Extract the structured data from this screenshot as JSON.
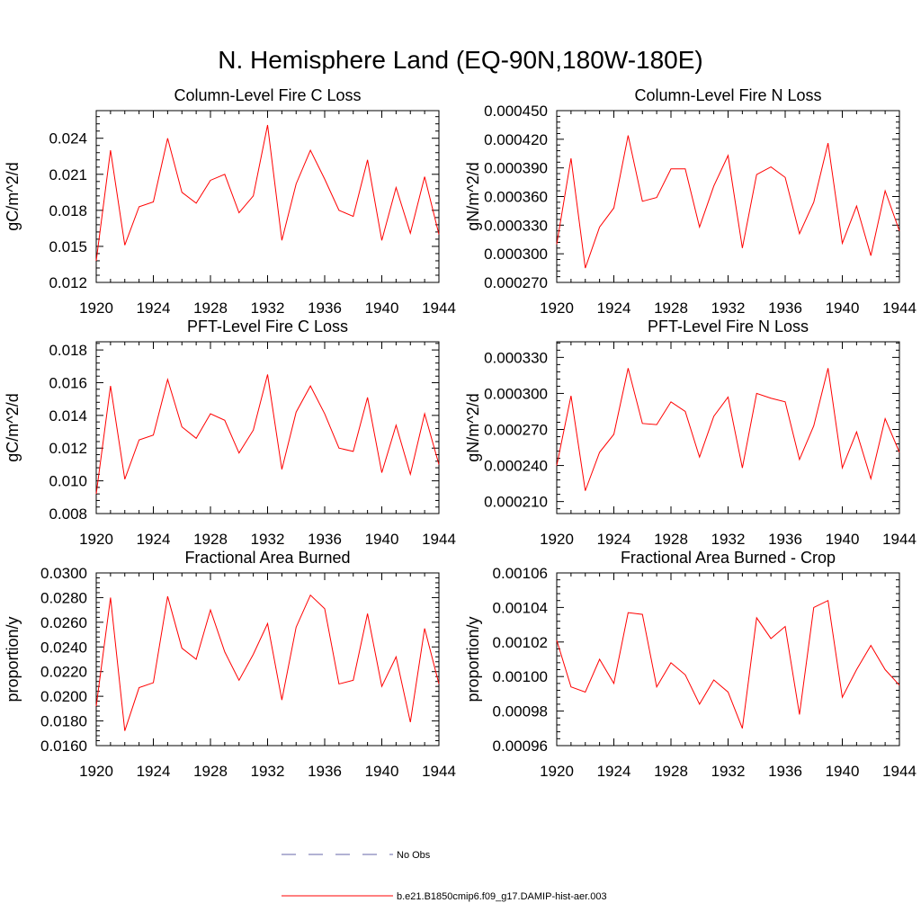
{
  "figure_title": "N. Hemisphere Land (EQ-90N,180W-180E)",
  "line_color": "#ff0000",
  "obs_color": "#6666aa",
  "legend": [
    {
      "label": "No Obs",
      "style": "dashed"
    },
    {
      "label": "b.e21.B1850cmip6.f09_g17.DAMIP-hist-aer.003",
      "style": "solid"
    }
  ],
  "chart_data": [
    {
      "type": "line",
      "title": "Column-Level Fire C Loss",
      "ylabel": "gC/m^2/d",
      "xlim": [
        1920,
        1944
      ],
      "x_ticks": [
        "1920",
        "1924",
        "1928",
        "1932",
        "1936",
        "1940",
        "1944"
      ],
      "ylim": [
        0.012,
        0.0263
      ],
      "y_ticks": [
        0.012,
        0.015,
        0.018,
        0.021,
        0.024
      ],
      "y_tick_labels": [
        "0.012",
        "0.015",
        "0.018",
        "0.021",
        "0.024"
      ],
      "x": [
        1920,
        1921,
        1922,
        1923,
        1924,
        1925,
        1926,
        1927,
        1928,
        1929,
        1930,
        1931,
        1932,
        1933,
        1934,
        1935,
        1936,
        1937,
        1938,
        1939,
        1940,
        1941,
        1942,
        1943,
        1944
      ],
      "series": [
        {
          "name": "b.e21.B1850cmip6.f09_g17.DAMIP-hist-aer.003",
          "values": [
            0.0138,
            0.023,
            0.0151,
            0.0183,
            0.0187,
            0.024,
            0.0195,
            0.0186,
            0.0205,
            0.021,
            0.0178,
            0.0192,
            0.0251,
            0.0155,
            0.0202,
            0.023,
            0.0206,
            0.018,
            0.0175,
            0.0222,
            0.0155,
            0.0199,
            0.0161,
            0.0208,
            0.016
          ]
        }
      ]
    },
    {
      "type": "line",
      "title": "Column-Level Fire N Loss",
      "ylabel": "gN/m^2/d",
      "xlim": [
        1920,
        1944
      ],
      "x_ticks": [
        "1920",
        "1924",
        "1928",
        "1932",
        "1936",
        "1940",
        "1944"
      ],
      "ylim": [
        0.00027,
        0.00045
      ],
      "y_ticks": [
        0.00027,
        0.0003,
        0.00033,
        0.00036,
        0.00039,
        0.00042,
        0.00045
      ],
      "y_tick_labels": [
        "0.000270",
        "0.000300",
        "0.000330",
        "0.000360",
        "0.000390",
        "0.000420",
        "0.000450"
      ],
      "x": [
        1920,
        1921,
        1922,
        1923,
        1924,
        1925,
        1926,
        1927,
        1928,
        1929,
        1930,
        1931,
        1932,
        1933,
        1934,
        1935,
        1936,
        1937,
        1938,
        1939,
        1940,
        1941,
        1942,
        1943,
        1944
      ],
      "series": [
        {
          "name": "b.e21.B1850cmip6.f09_g17.DAMIP-hist-aer.003",
          "values": [
            0.00031,
            0.0004,
            0.000285,
            0.000328,
            0.000348,
            0.000424,
            0.000355,
            0.000359,
            0.000389,
            0.000389,
            0.000328,
            0.000371,
            0.000403,
            0.000306,
            0.000383,
            0.000391,
            0.00038,
            0.000321,
            0.000354,
            0.000416,
            0.000311,
            0.00035,
            0.000298,
            0.000366,
            0.000324
          ]
        }
      ]
    },
    {
      "type": "line",
      "title": "PFT-Level Fire C Loss",
      "ylabel": "gC/m^2/d",
      "xlim": [
        1920,
        1944
      ],
      "x_ticks": [
        "1920",
        "1924",
        "1928",
        "1932",
        "1936",
        "1940",
        "1944"
      ],
      "ylim": [
        0.008,
        0.0185
      ],
      "y_ticks": [
        0.008,
        0.01,
        0.012,
        0.014,
        0.016,
        0.018
      ],
      "y_tick_labels": [
        "0.008",
        "0.010",
        "0.012",
        "0.014",
        "0.016",
        "0.018"
      ],
      "x": [
        1920,
        1921,
        1922,
        1923,
        1924,
        1925,
        1926,
        1927,
        1928,
        1929,
        1930,
        1931,
        1932,
        1933,
        1934,
        1935,
        1936,
        1937,
        1938,
        1939,
        1940,
        1941,
        1942,
        1943,
        1944
      ],
      "series": [
        {
          "name": "b.e21.B1850cmip6.f09_g17.DAMIP-hist-aer.003",
          "values": [
            0.0092,
            0.0158,
            0.0101,
            0.0125,
            0.0128,
            0.0162,
            0.0133,
            0.0126,
            0.0141,
            0.0137,
            0.0117,
            0.0131,
            0.0165,
            0.0107,
            0.0142,
            0.0158,
            0.0141,
            0.012,
            0.0118,
            0.0151,
            0.0105,
            0.0134,
            0.0104,
            0.0141,
            0.011
          ]
        }
      ]
    },
    {
      "type": "line",
      "title": "PFT-Level Fire N Loss",
      "ylabel": "gN/m^2/d",
      "xlim": [
        1920,
        1944
      ],
      "x_ticks": [
        "1920",
        "1924",
        "1928",
        "1932",
        "1936",
        "1940",
        "1944"
      ],
      "ylim": [
        0.0002,
        0.000343
      ],
      "y_ticks": [
        0.00021,
        0.00024,
        0.00027,
        0.0003,
        0.00033
      ],
      "y_tick_labels": [
        "0.000210",
        "0.000240",
        "0.000270",
        "0.000300",
        "0.000330"
      ],
      "x": [
        1920,
        1921,
        1922,
        1923,
        1924,
        1925,
        1926,
        1927,
        1928,
        1929,
        1930,
        1931,
        1932,
        1933,
        1934,
        1935,
        1936,
        1937,
        1938,
        1939,
        1940,
        1941,
        1942,
        1943,
        1944
      ],
      "series": [
        {
          "name": "b.e21.B1850cmip6.f09_g17.DAMIP-hist-aer.003",
          "values": [
            0.00024,
            0.000298,
            0.000219,
            0.000251,
            0.000266,
            0.000321,
            0.000275,
            0.000274,
            0.000293,
            0.000285,
            0.000247,
            0.000281,
            0.000297,
            0.000238,
            0.0003,
            0.000296,
            0.000293,
            0.000245,
            0.000273,
            0.000321,
            0.000238,
            0.000268,
            0.000229,
            0.000279,
            0.000251
          ]
        }
      ]
    },
    {
      "type": "line",
      "title": "Fractional Area Burned",
      "ylabel": "proportion/y",
      "xlim": [
        1920,
        1944
      ],
      "x_ticks": [
        "1920",
        "1924",
        "1928",
        "1932",
        "1936",
        "1940",
        "1944"
      ],
      "ylim": [
        0.016,
        0.03
      ],
      "y_ticks": [
        0.016,
        0.018,
        0.02,
        0.022,
        0.024,
        0.026,
        0.028,
        0.03
      ],
      "y_tick_labels": [
        "0.0160",
        "0.0180",
        "0.0200",
        "0.0220",
        "0.0240",
        "0.0260",
        "0.0280",
        "0.0300"
      ],
      "x": [
        1920,
        1921,
        1922,
        1923,
        1924,
        1925,
        1926,
        1927,
        1928,
        1929,
        1930,
        1931,
        1932,
        1933,
        1934,
        1935,
        1936,
        1937,
        1938,
        1939,
        1940,
        1941,
        1942,
        1943,
        1944
      ],
      "series": [
        {
          "name": "b.e21.B1850cmip6.f09_g17.DAMIP-hist-aer.003",
          "values": [
            0.0192,
            0.028,
            0.0172,
            0.0207,
            0.0211,
            0.0281,
            0.0239,
            0.023,
            0.027,
            0.0236,
            0.0213,
            0.0234,
            0.0259,
            0.0197,
            0.0256,
            0.0282,
            0.0271,
            0.021,
            0.0213,
            0.0267,
            0.0208,
            0.0232,
            0.0179,
            0.0255,
            0.021
          ]
        }
      ]
    },
    {
      "type": "line",
      "title": "Fractional Area Burned - Crop",
      "ylabel": "proportion/y",
      "xlim": [
        1920,
        1944
      ],
      "x_ticks": [
        "1920",
        "1924",
        "1928",
        "1932",
        "1936",
        "1940",
        "1944"
      ],
      "ylim": [
        0.00096,
        0.00106
      ],
      "y_ticks": [
        0.00096,
        0.00098,
        0.001,
        0.00102,
        0.00104,
        0.00106
      ],
      "y_tick_labels": [
        "0.00096",
        "0.00098",
        "0.00100",
        "0.00102",
        "0.00104",
        "0.00106"
      ],
      "x": [
        1920,
        1921,
        1922,
        1923,
        1924,
        1925,
        1926,
        1927,
        1928,
        1929,
        1930,
        1931,
        1932,
        1933,
        1934,
        1935,
        1936,
        1937,
        1938,
        1939,
        1940,
        1941,
        1942,
        1943,
        1944
      ],
      "series": [
        {
          "name": "b.e21.B1850cmip6.f09_g17.DAMIP-hist-aer.003",
          "values": [
            0.001021,
            0.000994,
            0.000991,
            0.00101,
            0.000996,
            0.001037,
            0.001036,
            0.000994,
            0.001008,
            0.001001,
            0.000984,
            0.000998,
            0.000991,
            0.00097,
            0.001034,
            0.001022,
            0.001029,
            0.000978,
            0.00104,
            0.001044,
            0.000988,
            0.001004,
            0.001018,
            0.001004,
            0.000995
          ]
        }
      ]
    }
  ]
}
